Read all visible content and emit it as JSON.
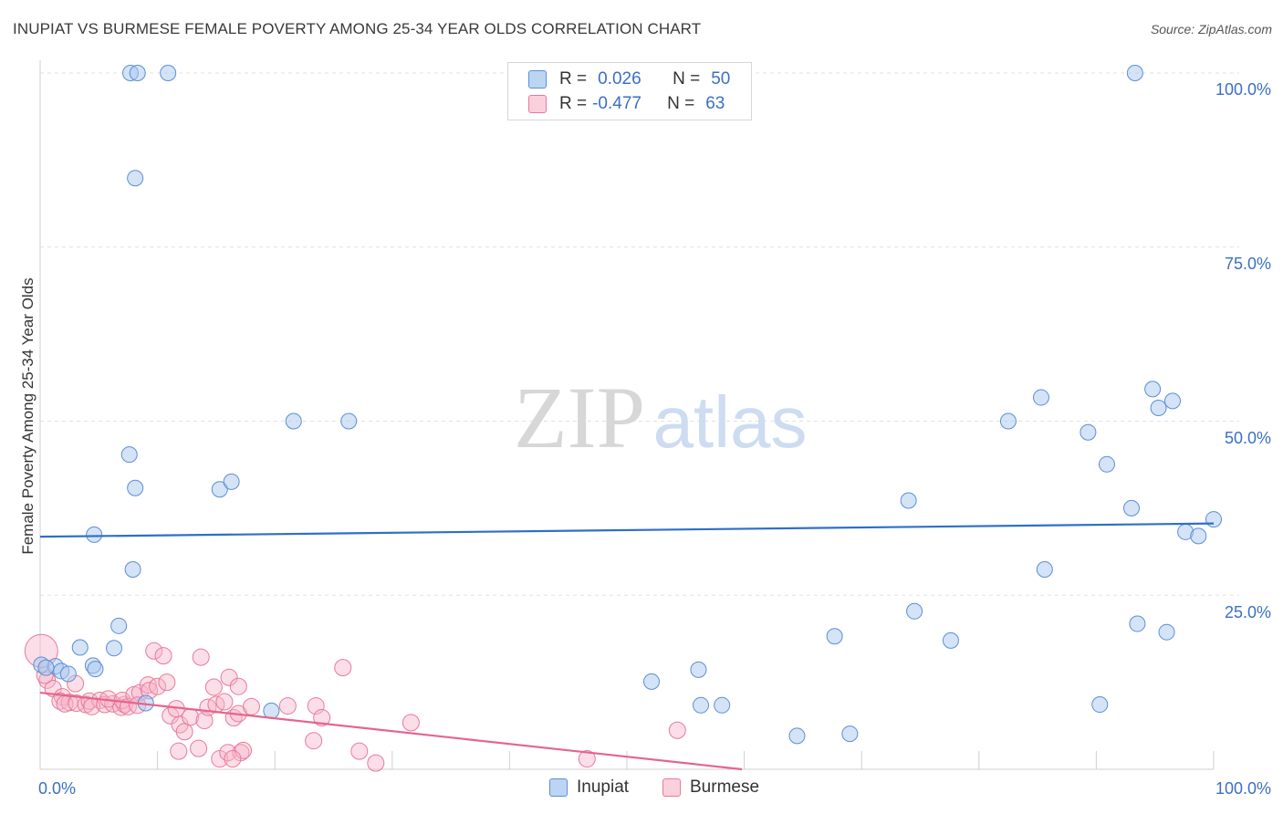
{
  "title": "INUPIAT VS BURMESE FEMALE POVERTY AMONG 25-34 YEAR OLDS CORRELATION CHART",
  "source": "Source: ZipAtlas.com",
  "watermark": {
    "zip": "ZIP",
    "atlas": "atlas"
  },
  "legend": {
    "inupiat": {
      "r_label": "R =",
      "r_value": "0.026",
      "n_label": "N =",
      "n_value": "50"
    },
    "burmese": {
      "r_label": "R =",
      "r_value": "-0.477",
      "n_label": "N =",
      "n_value": "63"
    }
  },
  "bottom_legend": {
    "inupiat": "Inupiat",
    "burmese": "Burmese"
  },
  "colors": {
    "inupiat_fill": "#a9c8ee",
    "inupiat_stroke": "#5b8fd6",
    "inupiat_line": "#2f6fc8",
    "burmese_fill": "#f6b6c9",
    "burmese_stroke": "#e8799b",
    "burmese_line": "#e4658f",
    "axis_label": "#3b6fc4",
    "grid": "#e2e2e2"
  },
  "chart_data": {
    "type": "scatter",
    "title": "INUPIAT VS BURMESE FEMALE POVERTY AMONG 25-34 YEAR OLDS CORRELATION CHART",
    "xlabel": "",
    "ylabel": "Female Poverty Among 25-34 Year Olds",
    "xlim": [
      0,
      100
    ],
    "ylim": [
      0,
      100
    ],
    "x_tick_labels": [
      "0.0%",
      "100.0%"
    ],
    "y_tick_labels": [
      "100.0%",
      "75.0%",
      "50.0%",
      "25.0%"
    ],
    "y_ticks": [
      100,
      75,
      50,
      25
    ],
    "series": [
      {
        "name": "Inupiat",
        "r": 0.026,
        "n": 50,
        "trend": [
          [
            0,
            33.4
          ],
          [
            100,
            35.3
          ]
        ],
        "points": [
          [
            0.1,
            15
          ],
          [
            1.3,
            14.8
          ],
          [
            1.8,
            14.1
          ],
          [
            2.4,
            13.7
          ],
          [
            4.5,
            14.9
          ],
          [
            3.4,
            17.5
          ],
          [
            4.7,
            14.4
          ],
          [
            4.6,
            33.7
          ],
          [
            6.3,
            17.4
          ],
          [
            6.7,
            20.6
          ],
          [
            7.9,
            28.7
          ],
          [
            7.6,
            45.2
          ],
          [
            8.1,
            40.4
          ],
          [
            7.7,
            100
          ],
          [
            8.3,
            100
          ],
          [
            10.9,
            100
          ],
          [
            8.1,
            84.9
          ],
          [
            9.0,
            9.5
          ],
          [
            15.3,
            40.2
          ],
          [
            16.3,
            41.3
          ],
          [
            21.6,
            50
          ],
          [
            26.3,
            50
          ],
          [
            19.7,
            8.4
          ],
          [
            52.1,
            12.6
          ],
          [
            56.1,
            14.3
          ],
          [
            56.3,
            9.2
          ],
          [
            58.1,
            9.2
          ],
          [
            64.5,
            4.8
          ],
          [
            69.0,
            5.1
          ],
          [
            67.7,
            19.1
          ],
          [
            74.0,
            38.6
          ],
          [
            74.5,
            22.7
          ],
          [
            77.6,
            18.5
          ],
          [
            82.5,
            50
          ],
          [
            85.3,
            53.4
          ],
          [
            85.6,
            28.7
          ],
          [
            89.3,
            48.4
          ],
          [
            90.9,
            43.8
          ],
          [
            90.3,
            9.3
          ],
          [
            93.0,
            37.5
          ],
          [
            93.5,
            20.9
          ],
          [
            94.8,
            54.6
          ],
          [
            95.3,
            51.9
          ],
          [
            93.3,
            100
          ],
          [
            96.5,
            52.9
          ],
          [
            96.0,
            19.7
          ],
          [
            97.6,
            34.1
          ],
          [
            98.7,
            33.5
          ],
          [
            100,
            35.9
          ],
          [
            0.5,
            14.6
          ]
        ]
      },
      {
        "name": "Burmese",
        "r": -0.477,
        "n": 63,
        "trend": [
          [
            0,
            11.0
          ],
          [
            59.8,
            0
          ]
        ],
        "points": [
          [
            0.1,
            17
          ],
          [
            0.6,
            12.8
          ],
          [
            1.1,
            11.6
          ],
          [
            1.9,
            10.4
          ],
          [
            1.7,
            9.8
          ],
          [
            2.5,
            9.6
          ],
          [
            2.1,
            9.4
          ],
          [
            3.1,
            9.5
          ],
          [
            3.0,
            12.3
          ],
          [
            3.9,
            9.3
          ],
          [
            4.2,
            9.8
          ],
          [
            5.1,
            9.9
          ],
          [
            4.4,
            9.0
          ],
          [
            5.5,
            9.3
          ],
          [
            6.2,
            9.4
          ],
          [
            5.8,
            10.1
          ],
          [
            6.9,
            8.9
          ],
          [
            7.2,
            9.3
          ],
          [
            7.0,
            9.9
          ],
          [
            7.5,
            9.0
          ],
          [
            8.0,
            10.7
          ],
          [
            8.5,
            11.0
          ],
          [
            8.3,
            9.2
          ],
          [
            9.2,
            12.1
          ],
          [
            9.7,
            17
          ],
          [
            9.3,
            11.3
          ],
          [
            10.0,
            11.9
          ],
          [
            10.5,
            16.3
          ],
          [
            10.8,
            12.5
          ],
          [
            11.1,
            7.7
          ],
          [
            11.6,
            8.7
          ],
          [
            11.9,
            6.4
          ],
          [
            12.3,
            5.4
          ],
          [
            12.8,
            7.5
          ],
          [
            11.8,
            2.6
          ],
          [
            13.5,
            3.0
          ],
          [
            13.7,
            16.1
          ],
          [
            14.0,
            7.0
          ],
          [
            14.3,
            8.9
          ],
          [
            14.8,
            11.8
          ],
          [
            15.0,
            9.3
          ],
          [
            15.7,
            9.7
          ],
          [
            16.1,
            13.2
          ],
          [
            16.5,
            7.4
          ],
          [
            16.9,
            8.0
          ],
          [
            15.3,
            1.5
          ],
          [
            16.0,
            2.4
          ],
          [
            17.1,
            2.4
          ],
          [
            17.3,
            2.7
          ],
          [
            16.4,
            1.5
          ],
          [
            16.9,
            11.9
          ],
          [
            18.0,
            9.0
          ],
          [
            21.1,
            9.1
          ],
          [
            23.3,
            4.1
          ],
          [
            23.5,
            9.1
          ],
          [
            24.0,
            7.4
          ],
          [
            25.8,
            14.6
          ],
          [
            27.2,
            2.6
          ],
          [
            28.6,
            0.9
          ],
          [
            31.6,
            6.7
          ],
          [
            46.6,
            1.5
          ],
          [
            54.3,
            5.6
          ],
          [
            0.4,
            13.5
          ]
        ]
      }
    ]
  }
}
